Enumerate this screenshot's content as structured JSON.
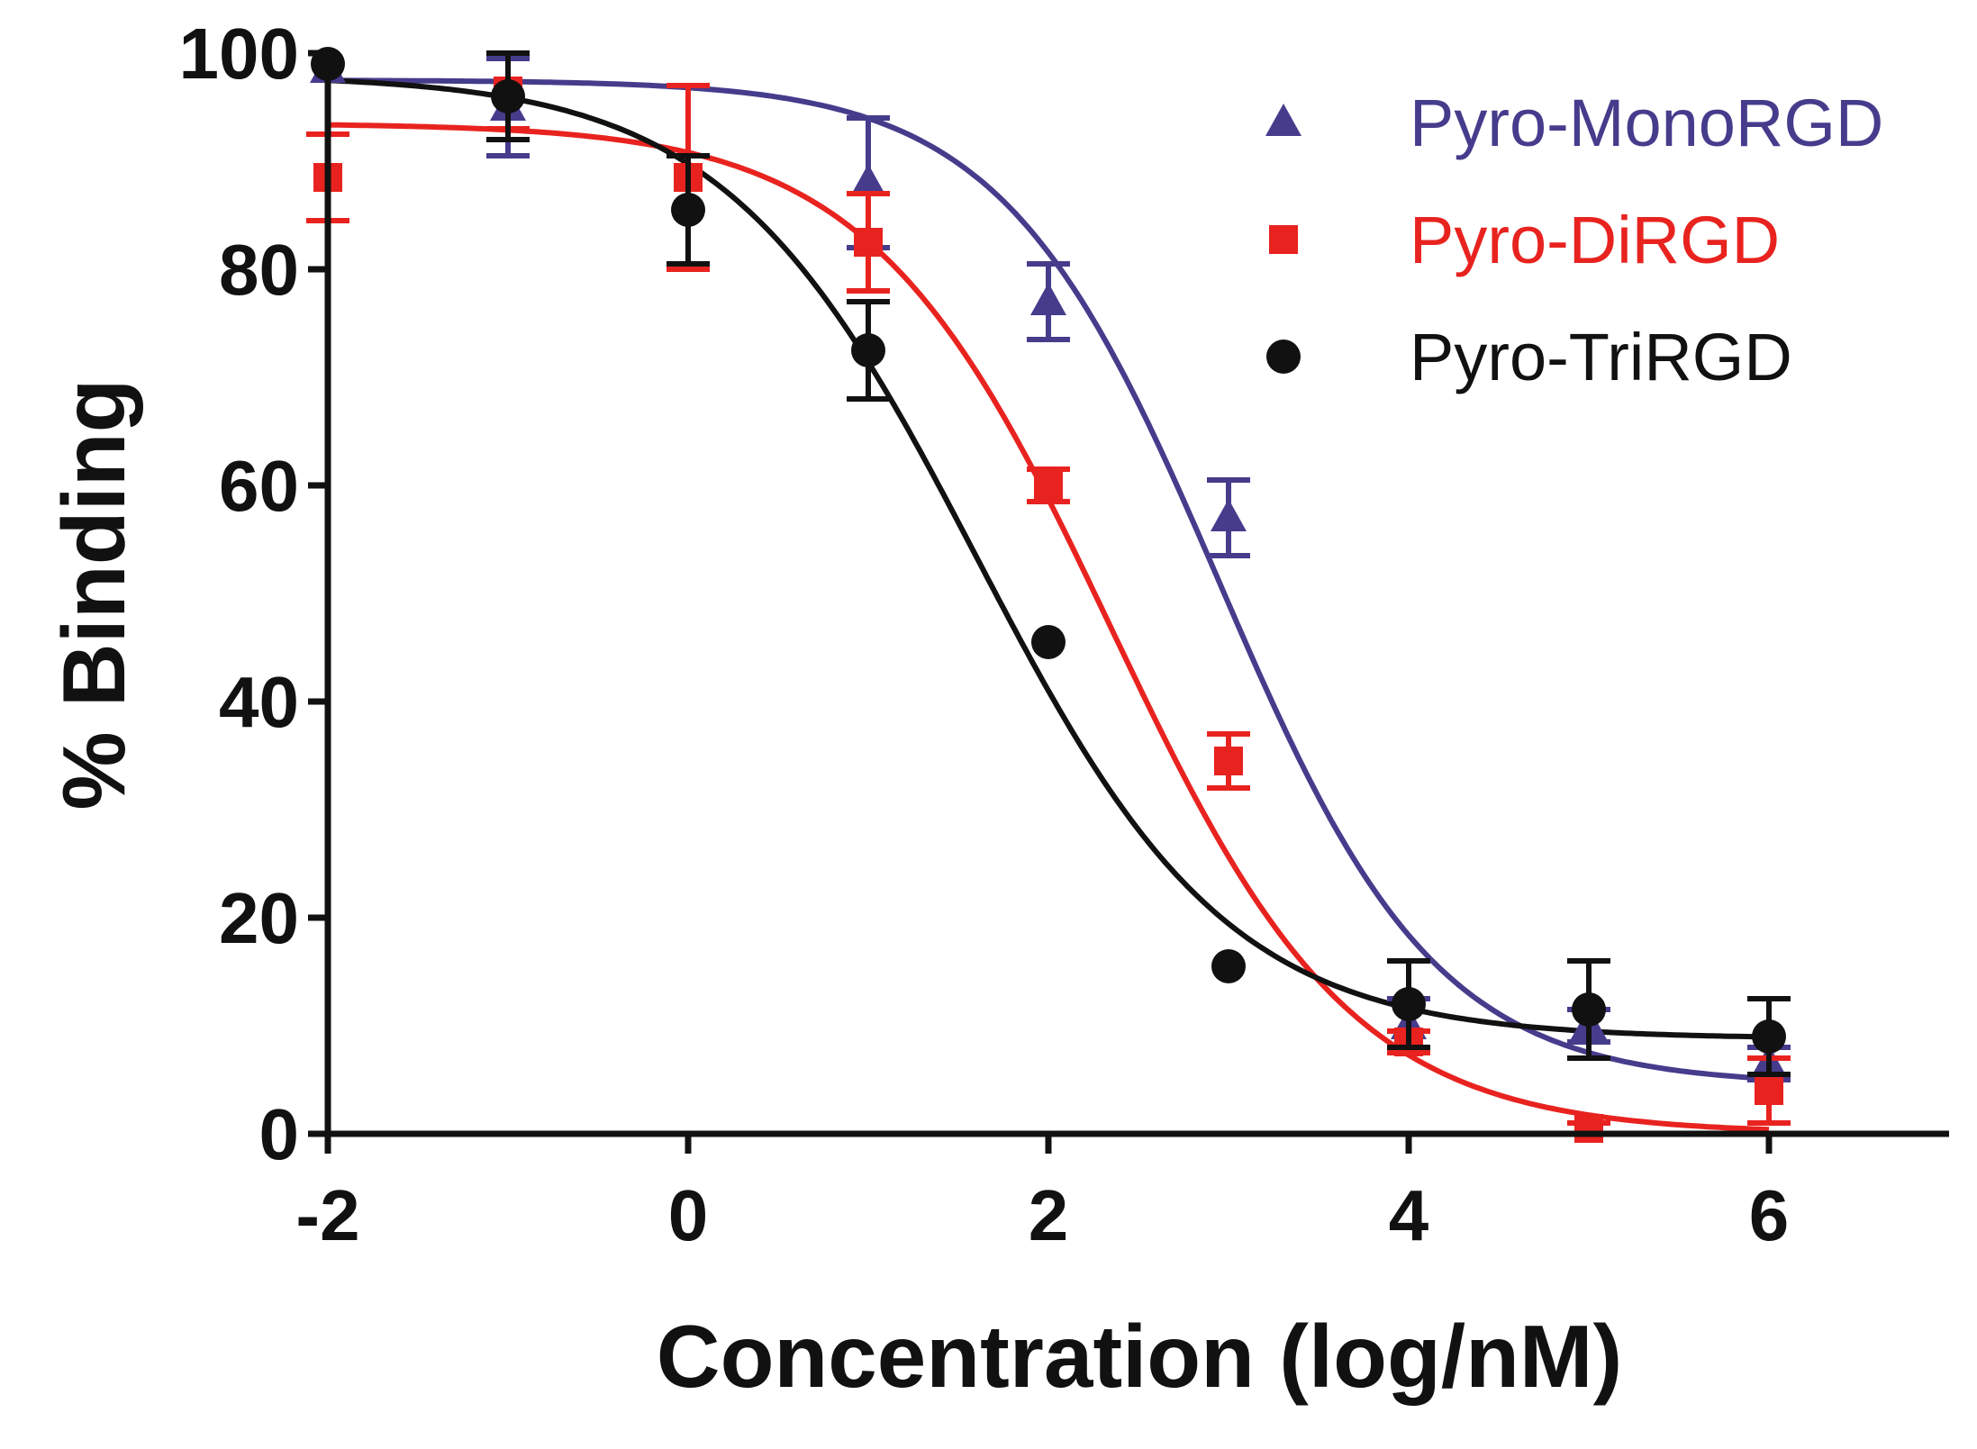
{
  "chart_data": {
    "type": "scatter",
    "title": "",
    "xlabel": "Concentration (log/nM)",
    "ylabel": "% Binding",
    "xlim": [
      -2,
      7
    ],
    "ylim": [
      0,
      100
    ],
    "xticks": [
      -2,
      0,
      2,
      4,
      6
    ],
    "yticks": [
      0,
      20,
      40,
      60,
      80,
      100
    ],
    "x_tick_labels": [
      "-2",
      "0",
      "2",
      "4",
      "6"
    ],
    "y_tick_labels": [
      "0",
      "20",
      "40",
      "60",
      "80",
      "100"
    ],
    "grid": false,
    "legend_position": "top-right",
    "series": [
      {
        "name": "Pyro-MonoRGD",
        "color": "#463c8c",
        "marker": "triangle",
        "x": [
          -2,
          -1,
          1,
          2,
          3,
          4,
          5,
          6
        ],
        "y": [
          98.5,
          95,
          88,
          77,
          57,
          10,
          10,
          6.5
        ],
        "error": [
          0,
          4.5,
          6,
          3.5,
          3.5,
          2.5,
          1.5,
          1.5
        ],
        "fit": {
          "top": 97.5,
          "bottom": 4.5,
          "logIC50": 2.95,
          "hill": 0.72
        }
      },
      {
        "name": "Pyro-DiRGD",
        "color": "#e8231f",
        "marker": "square",
        "x": [
          -2,
          -1,
          0,
          1,
          2,
          3,
          4,
          5,
          6
        ],
        "y": [
          88.5,
          96.5,
          88.5,
          82.5,
          60,
          34.5,
          8.5,
          0.5,
          4
        ],
        "error": [
          4,
          3.5,
          8.5,
          4.5,
          1.5,
          2.5,
          1,
          0.5,
          3
        ],
        "fit": {
          "top": 93.5,
          "bottom": 0,
          "logIC50": 2.35,
          "hill": 0.65
        }
      },
      {
        "name": "Pyro-TriRGD",
        "color": "#111111",
        "marker": "circle",
        "x": [
          -2,
          -1,
          0,
          1,
          2,
          3,
          4,
          5,
          6
        ],
        "y": [
          99,
          96,
          85.5,
          72.5,
          45.5,
          15.5,
          12,
          11.5,
          9
        ],
        "error": [
          0,
          4,
          5,
          4.5,
          0,
          0,
          4,
          4.5,
          3.5
        ],
        "fit": {
          "top": 98,
          "bottom": 8.8,
          "logIC50": 1.6,
          "hill": 0.62
        }
      }
    ]
  }
}
